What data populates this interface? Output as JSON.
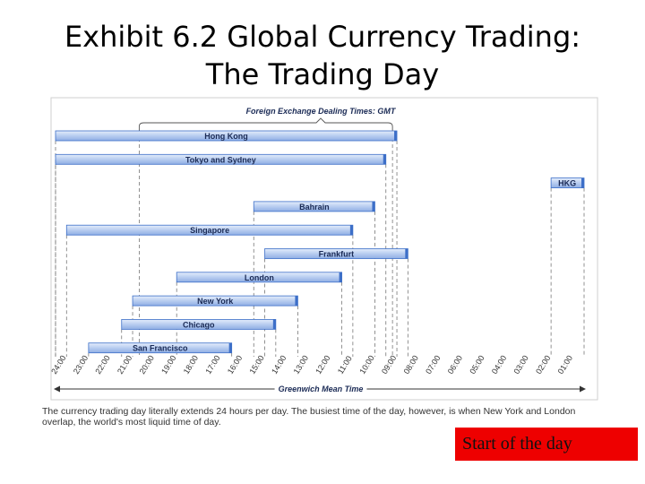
{
  "slide": {
    "title_line1": "Exhibit 6.2  Global Currency Trading:",
    "title_line2": "The Trading Day",
    "caption": "The currency trading day literally extends 24 hours per day. The busiest time of the day, however, is when New York and London overlap, the world's most liquid time of day.",
    "start_box": "Start of the day"
  },
  "colors": {
    "bar_fill": "#b8cdf0",
    "bar_edge": "#3d6fc8",
    "start_box": "#ee0000"
  },
  "chart_data": {
    "type": "bar",
    "title": "Foreign Exchange Dealing Times: GMT",
    "xlabel": "Greenwich Mean Time",
    "x_ticks": [
      "24:00",
      "23:00",
      "22:00",
      "21:00",
      "20:00",
      "19:00",
      "18:00",
      "17:00",
      "16:00",
      "15:00",
      "14:00",
      "13:00",
      "12:00",
      "11:00",
      "10:00",
      "09:00",
      "08:00",
      "07:00",
      "06:00",
      "05:00",
      "04:00",
      "03:00",
      "02:00",
      "01:00"
    ],
    "x_direction": "decreasing GMT hour from left to right",
    "grid": "dashed vertical guide lines at bar ends",
    "series": [
      {
        "name": "Hong Kong",
        "open": 8.5,
        "close": 24
      },
      {
        "name": "Tokyo and Sydney",
        "open": 9,
        "close": 24
      },
      {
        "name": "HKG",
        "open": 0,
        "close": 1.5
      },
      {
        "name": "Bahrain",
        "open": 9.5,
        "close": 15
      },
      {
        "name": "Singapore",
        "open": 10.5,
        "close": 23.5
      },
      {
        "name": "Frankfurt",
        "open": 8,
        "close": 14.5
      },
      {
        "name": "London",
        "open": 11,
        "close": 18.5
      },
      {
        "name": "New York",
        "open": 13,
        "close": 20.5
      },
      {
        "name": "Chicago",
        "open": 14,
        "close": 21
      },
      {
        "name": "San Francisco",
        "open": 16,
        "close": 22.5
      }
    ]
  }
}
